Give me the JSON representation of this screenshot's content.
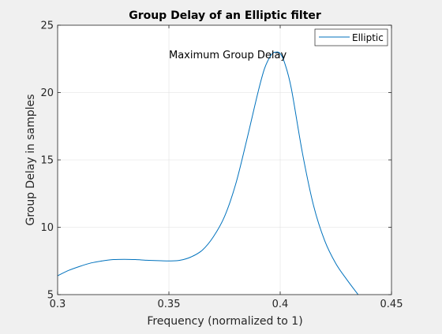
{
  "chart_data": {
    "type": "line",
    "title": "Group Delay of an Elliptic filter",
    "xlabel": "Frequency (normalized to 1)",
    "ylabel": "Group Delay in samples",
    "xlim": [
      0.3,
      0.45
    ],
    "ylim": [
      5,
      25
    ],
    "xticks": [
      0.3,
      0.35,
      0.4,
      0.45
    ],
    "xtick_labels": [
      "0.3",
      "0.35",
      "0.4",
      "0.45"
    ],
    "yticks": [
      5,
      10,
      15,
      20,
      25
    ],
    "ytick_labels": [
      "5",
      "10",
      "15",
      "20",
      "25"
    ],
    "grid": true,
    "legend_position": "top-right",
    "annotation": {
      "text": "Maximum Group Delay",
      "x": 0.35,
      "y": 22.8
    },
    "series": [
      {
        "name": "Elliptic",
        "color": "#0072bd",
        "x": [
          0.3,
          0.305,
          0.31,
          0.315,
          0.32,
          0.325,
          0.33,
          0.335,
          0.34,
          0.345,
          0.35,
          0.355,
          0.36,
          0.365,
          0.37,
          0.375,
          0.38,
          0.385,
          0.39,
          0.393,
          0.396,
          0.398,
          0.4,
          0.402,
          0.405,
          0.41,
          0.415,
          0.42,
          0.425,
          0.43,
          0.435
        ],
        "y": [
          6.4,
          6.8,
          7.1,
          7.35,
          7.5,
          7.6,
          7.62,
          7.6,
          7.55,
          7.52,
          7.5,
          7.55,
          7.8,
          8.3,
          9.3,
          10.8,
          13.2,
          16.5,
          20.0,
          21.8,
          22.8,
          23.0,
          22.9,
          22.2,
          20.3,
          15.5,
          11.6,
          9.0,
          7.3,
          6.1,
          5.0
        ]
      }
    ]
  }
}
